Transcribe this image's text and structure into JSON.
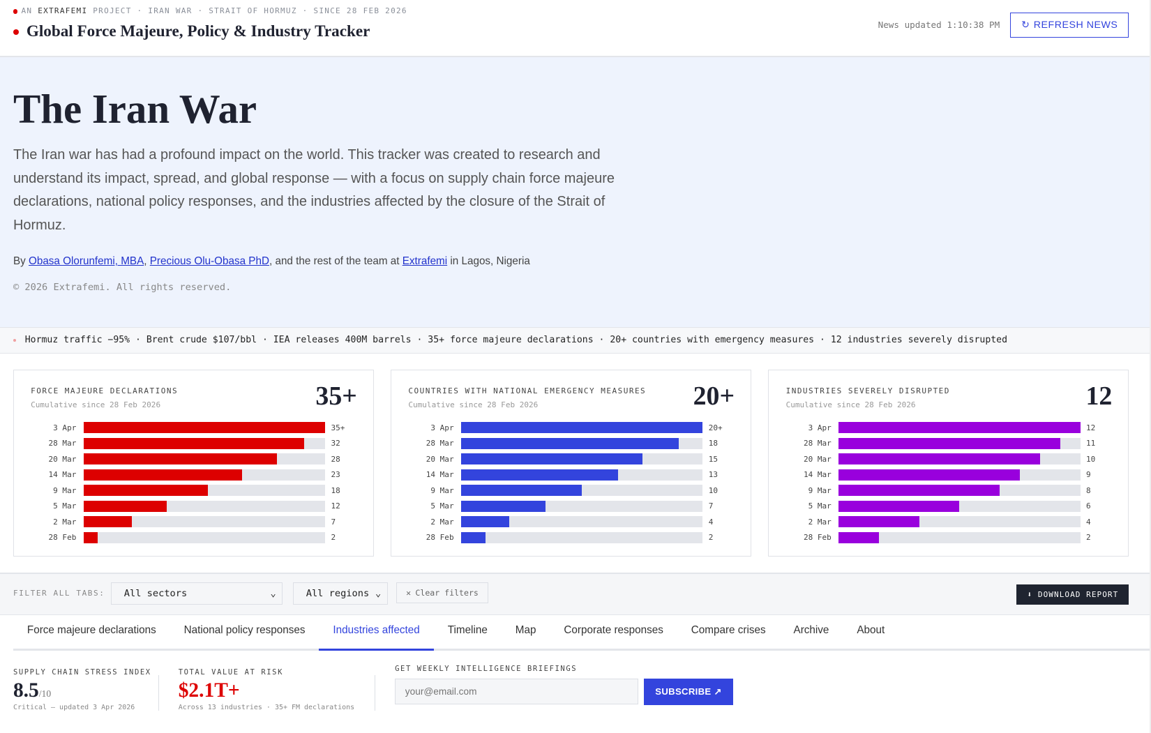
{
  "header": {
    "kicker_pre": "AN",
    "kicker_brand": "EXTRAFEMI",
    "kicker_rest": "PROJECT · IRAN WAR · STRAIT OF HORMUZ · SINCE 28 FEB 2026",
    "title": "Global Force Majeure, Policy & Industry Tracker",
    "updated": "News updated 1:10:38 PM",
    "refresh_label": "REFRESH NEWS"
  },
  "hero": {
    "title": "The Iran War",
    "intro": "The Iran war has had a profound impact on the world. This tracker was created to research and understand its impact, spread, and global response — with a focus on supply chain force majeure declarations, national policy responses, and the industries affected by the closure of the Strait of Hormuz.",
    "by": "By",
    "author1": "Obasa Olorunfemi, MBA",
    "sep": ",",
    "author2": "Precious Olu-Obasa PhD",
    "mid": ", and the rest of the team at",
    "org": "Extrafemi",
    "loc": "in Lagos, Nigeria",
    "copyright": "© 2026 Extrafemi. All rights reserved."
  },
  "ticker": "Hormuz traffic −95% · Brent crude $107/bbl · IEA releases 400M barrels · 35+ force majeure declarations · 20+ countries with emergency measures · 12 industries severely disrupted",
  "chart_data": [
    {
      "type": "bar",
      "title": "FORCE MAJEURE DECLARATIONS",
      "subtitle": "Cumulative since 28 Feb 2026",
      "headline": "35+",
      "color": "#dd0000",
      "max": 35,
      "categories": [
        "3 Apr",
        "28 Mar",
        "20 Mar",
        "14 Mar",
        "9 Mar",
        "5 Mar",
        "2 Mar",
        "28 Feb"
      ],
      "values": [
        35,
        32,
        28,
        23,
        18,
        12,
        7,
        2
      ],
      "labels": [
        "35+",
        "32",
        "28",
        "23",
        "18",
        "12",
        "7",
        "2"
      ]
    },
    {
      "type": "bar",
      "title": "COUNTRIES WITH NATIONAL EMERGENCY MEASURES",
      "subtitle": "Cumulative since 28 Feb 2026",
      "headline": "20+",
      "color": "#3344dd",
      "max": 20,
      "categories": [
        "3 Apr",
        "28 Mar",
        "20 Mar",
        "14 Mar",
        "9 Mar",
        "5 Mar",
        "2 Mar",
        "28 Feb"
      ],
      "values": [
        20,
        18,
        15,
        13,
        10,
        7,
        4,
        2
      ],
      "labels": [
        "20+",
        "18",
        "15",
        "13",
        "10",
        "7",
        "4",
        "2"
      ]
    },
    {
      "type": "bar",
      "title": "INDUSTRIES SEVERELY DISRUPTED",
      "subtitle": "Cumulative since 28 Feb 2026",
      "headline": "12",
      "color": "#9900dd",
      "max": 12,
      "categories": [
        "3 Apr",
        "28 Mar",
        "20 Mar",
        "14 Mar",
        "9 Mar",
        "5 Mar",
        "2 Mar",
        "28 Feb"
      ],
      "values": [
        12,
        11,
        10,
        9,
        8,
        6,
        4,
        2
      ],
      "labels": [
        "12",
        "11",
        "10",
        "9",
        "8",
        "6",
        "4",
        "2"
      ]
    }
  ],
  "filters": {
    "label": "FILTER ALL TABS:",
    "sector": "All sectors",
    "region": "All regions",
    "clear": "Clear filters",
    "download": "⬇ DOWNLOAD REPORT"
  },
  "tabs": [
    "Force majeure declarations",
    "National policy responses",
    "Industries affected",
    "Timeline",
    "Map",
    "Corporate responses",
    "Compare crises",
    "Archive",
    "About"
  ],
  "active_tab": 2,
  "stats": {
    "stress_label": "SUPPLY CHAIN STRESS INDEX",
    "stress_value": "8.5",
    "stress_of": "/10",
    "stress_sub": "Critical — updated 3 Apr 2026",
    "risk_label": "TOTAL VALUE AT RISK",
    "risk_value": "$2.1T+",
    "risk_sub": "Across 13 industries · 35+ FM declarations",
    "risk_color": "#dd0000"
  },
  "subscribe": {
    "label": "GET WEEKLY INTELLIGENCE BRIEFINGS",
    "placeholder": "your@email.com",
    "button": "SUBSCRIBE ↗"
  }
}
